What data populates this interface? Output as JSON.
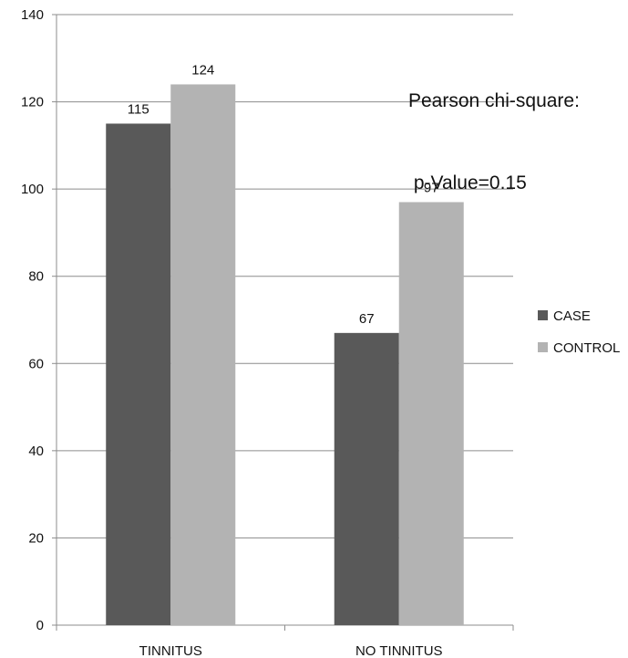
{
  "chart_data": {
    "type": "bar",
    "categories": [
      "TINNITUS",
      "NO TINNITUS"
    ],
    "series": [
      {
        "name": "CASE",
        "values": [
          115,
          67
        ],
        "color": "#595959"
      },
      {
        "name": "CONTROL",
        "values": [
          124,
          97
        ],
        "color": "#b3b3b3"
      }
    ],
    "ylim": [
      0,
      140
    ],
    "yticks": [
      0,
      20,
      40,
      60,
      80,
      100,
      120,
      140
    ],
    "grid": true,
    "legend": "right",
    "annotation": {
      "line1": "Pearson chi-square:",
      "line2": " p-Value=0.15"
    }
  }
}
